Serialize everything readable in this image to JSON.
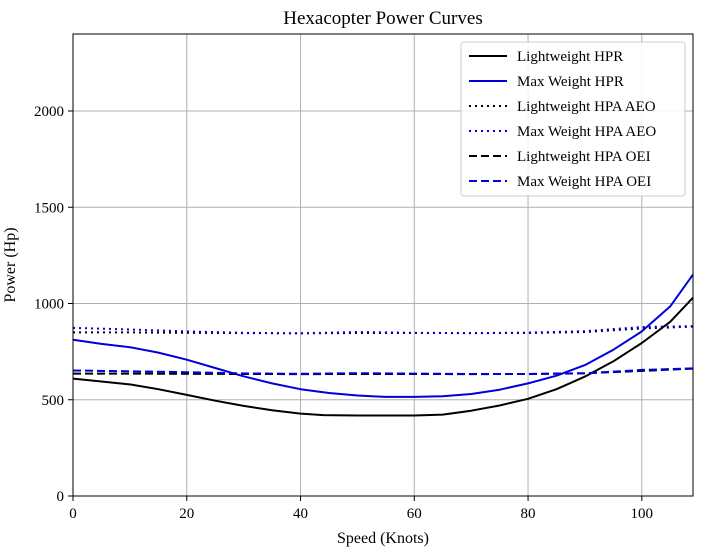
{
  "chart_data": {
    "type": "line",
    "title": "Hexacopter Power Curves",
    "xlabel": "Speed (Knots)",
    "ylabel": "Power (Hp)",
    "xlim": [
      0,
      109
    ],
    "ylim": [
      0,
      2400
    ],
    "xticks": [
      0,
      20,
      40,
      60,
      80,
      100
    ],
    "yticks": [
      0,
      500,
      1000,
      1500,
      2000
    ],
    "grid": true,
    "legend_position": "top-right",
    "series": [
      {
        "name": "Lightweight HPR",
        "color": "#000000",
        "style": "solid",
        "x": [
          0,
          5,
          10,
          15,
          20,
          25,
          30,
          35,
          40,
          44,
          50,
          55,
          60,
          65,
          70,
          75,
          80,
          85,
          90,
          95,
          100,
          105,
          109
        ],
        "y": [
          610,
          595,
          580,
          555,
          525,
          495,
          468,
          445,
          428,
          420,
          418,
          418,
          418,
          423,
          443,
          470,
          505,
          555,
          620,
          700,
          795,
          905,
          1030
        ]
      },
      {
        "name": "Max Weight HPR",
        "color": "#0000dd",
        "style": "solid",
        "x": [
          0,
          5,
          10,
          15,
          20,
          25,
          30,
          35,
          40,
          45,
          50,
          55,
          60,
          65,
          70,
          75,
          80,
          85,
          90,
          95,
          100,
          105,
          109
        ],
        "y": [
          812,
          790,
          773,
          745,
          708,
          665,
          622,
          585,
          555,
          535,
          522,
          515,
          515,
          518,
          530,
          552,
          585,
          625,
          680,
          760,
          855,
          985,
          1150
        ]
      },
      {
        "name": "Lightweight HPA AEO",
        "color": "#000000",
        "style": "dotted",
        "x": [
          0,
          10,
          20,
          30,
          40,
          50,
          60,
          70,
          80,
          90,
          100,
          109
        ],
        "y": [
          850,
          850,
          848,
          846,
          845,
          847,
          847,
          846,
          847,
          852,
          870,
          880
        ]
      },
      {
        "name": "Max Weight HPA AEO",
        "color": "#0000dd",
        "style": "dotted",
        "x": [
          0,
          10,
          20,
          30,
          40,
          50,
          60,
          70,
          80,
          90,
          100,
          109
        ],
        "y": [
          873,
          865,
          855,
          848,
          845,
          852,
          848,
          846,
          849,
          856,
          878,
          882
        ]
      },
      {
        "name": "Lightweight HPA OEI",
        "color": "#000000",
        "style": "dashed",
        "x": [
          0,
          10,
          20,
          30,
          40,
          50,
          60,
          70,
          80,
          90,
          100,
          109
        ],
        "y": [
          636,
          636,
          635,
          634,
          633,
          634,
          634,
          633,
          634,
          638,
          650,
          662
        ]
      },
      {
        "name": "Max Weight HPA OEI",
        "color": "#0000dd",
        "style": "dashed",
        "x": [
          0,
          10,
          20,
          30,
          40,
          50,
          60,
          70,
          80,
          90,
          100,
          109
        ],
        "y": [
          652,
          648,
          643,
          637,
          635,
          638,
          636,
          634,
          634,
          637,
          655,
          663
        ]
      }
    ]
  }
}
